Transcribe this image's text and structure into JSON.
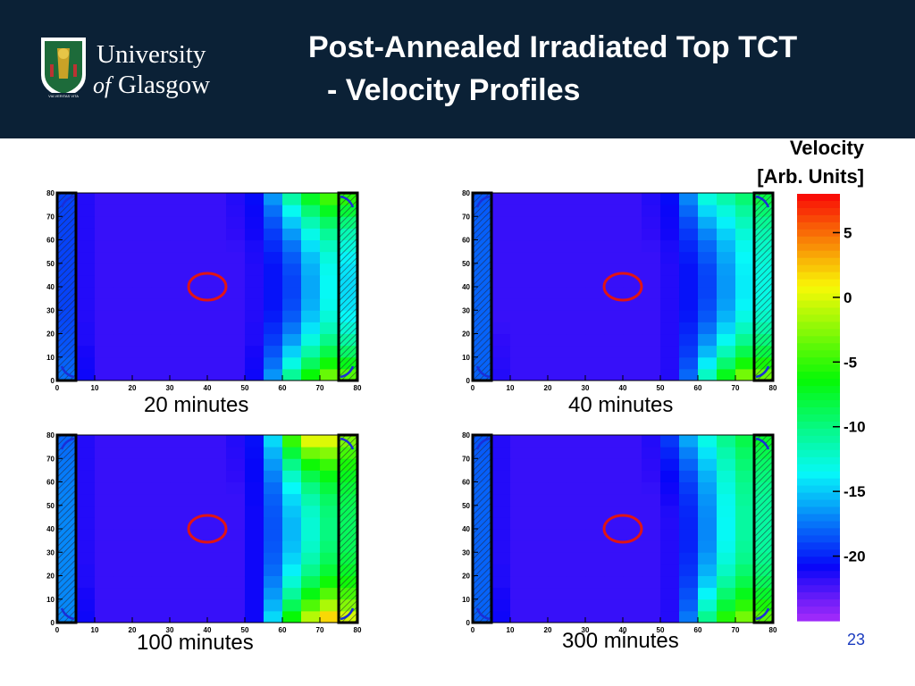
{
  "header": {
    "university_line1": "University",
    "university_line2_italic": "of",
    "university_line2": "Glasgow",
    "motto": "VIA VERITAS VITA",
    "title_line1": "Post-Annealed Irradiated Top TCT",
    "title_line2": "- Velocity Profiles"
  },
  "colorbar": {
    "title_line1": "Velocity",
    "title_line2": "[Arb. Units]",
    "range": [
      -25,
      8
    ],
    "ticks": [
      "5",
      "0",
      "-5",
      "-10",
      "-15",
      "-20"
    ],
    "tick_values": [
      5,
      0,
      -5,
      -10,
      -15,
      -20
    ]
  },
  "page_number": "23",
  "colors": {
    "header_bg": "#0b2136",
    "marker_circle": "#e01515",
    "page_number": "#1a3bbf"
  },
  "chart_data": [
    {
      "type": "heatmap",
      "caption": "20 minutes",
      "x_ticks": [
        "0",
        "10",
        "20",
        "30",
        "40",
        "50",
        "60",
        "70",
        "80"
      ],
      "y_ticks": [
        "0",
        "10",
        "20",
        "30",
        "40",
        "50",
        "60",
        "70",
        "80"
      ],
      "xlim": [
        0,
        80
      ],
      "ylim": [
        0,
        80
      ],
      "marker": {
        "x": 40,
        "y": 40
      },
      "profile_top": [
        -17,
        -21,
        -22,
        -22,
        -22,
        -22,
        -22,
        -22,
        -22,
        -22,
        -21,
        -20,
        -12,
        -8,
        -4,
        -3,
        -5
      ],
      "profile_mid": [
        -17,
        -21,
        -22,
        -22,
        -22,
        -22,
        -22,
        -22,
        -22,
        -22,
        -22,
        -21,
        -20,
        -18,
        -14,
        -13,
        -16
      ],
      "profile_bottom": [
        -15,
        -20,
        -22,
        -22,
        -22,
        -22,
        -22,
        -22,
        -22,
        -22,
        -22,
        -20,
        -12,
        -7,
        -3,
        -1,
        -4
      ]
    },
    {
      "type": "heatmap",
      "caption": "40 minutes",
      "x_ticks": [
        "0",
        "10",
        "20",
        "30",
        "40",
        "50",
        "60",
        "70",
        "80"
      ],
      "y_ticks": [
        "0",
        "10",
        "20",
        "30",
        "40",
        "50",
        "60",
        "70",
        "80"
      ],
      "xlim": [
        0,
        80
      ],
      "ylim": [
        0,
        80
      ],
      "marker": {
        "x": 40,
        "y": 40
      },
      "profile_top": [
        -15,
        -22,
        -22,
        -22,
        -22,
        -22,
        -22,
        -22,
        -22,
        -22,
        -21,
        -20,
        -13,
        -11,
        -10,
        -8,
        -7
      ],
      "profile_mid": [
        -14,
        -22,
        -22,
        -22,
        -22,
        -22,
        -22,
        -22,
        -22,
        -22,
        -22,
        -21,
        -20,
        -18,
        -15,
        -13,
        -13
      ],
      "profile_bottom": [
        -15,
        -21,
        -22,
        -22,
        -22,
        -22,
        -22,
        -22,
        -22,
        -22,
        -22,
        -21,
        -14,
        -8,
        -3,
        0,
        -4
      ]
    },
    {
      "type": "heatmap",
      "caption": "100 minutes",
      "x_ticks": [
        "0",
        "10",
        "20",
        "30",
        "40",
        "50",
        "60",
        "70",
        "80"
      ],
      "y_ticks": [
        "0",
        "10",
        "20",
        "30",
        "40",
        "50",
        "60",
        "70",
        "80"
      ],
      "xlim": [
        0,
        80
      ],
      "ylim": [
        0,
        80
      ],
      "marker": {
        "x": 40,
        "y": 40
      },
      "profile_top": [
        -15,
        -21,
        -22,
        -22,
        -22,
        -22,
        -22,
        -22,
        -22,
        -22,
        -21,
        -20,
        -8,
        1,
        3,
        0,
        -4
      ],
      "profile_mid": [
        -13,
        -21,
        -22,
        -22,
        -22,
        -22,
        -22,
        -22,
        -22,
        -22,
        -22,
        -20,
        -17,
        -14,
        -11,
        -9,
        -9
      ],
      "profile_bottom": [
        -14,
        -20,
        -22,
        -22,
        -22,
        -22,
        -22,
        -22,
        -22,
        -22,
        -22,
        -20,
        -8,
        -2,
        3,
        4,
        -2
      ]
    },
    {
      "type": "heatmap",
      "caption": "300 minutes",
      "x_ticks": [
        "0",
        "10",
        "20",
        "30",
        "40",
        "50",
        "60",
        "70",
        "80"
      ],
      "y_ticks": [
        "0",
        "10",
        "20",
        "30",
        "40",
        "50",
        "60",
        "70",
        "80"
      ],
      "xlim": [
        0,
        80
      ],
      "ylim": [
        0,
        80
      ],
      "marker": {
        "x": 40,
        "y": 40
      },
      "profile_top": [
        -16,
        -21,
        -22,
        -22,
        -22,
        -22,
        -22,
        -22,
        -22,
        -22,
        -21,
        -17,
        -14,
        -11,
        -9,
        -7,
        -7
      ],
      "profile_mid": [
        -15,
        -21,
        -22,
        -22,
        -22,
        -22,
        -22,
        -22,
        -22,
        -22,
        -22,
        -21,
        -19,
        -15,
        -12,
        -10,
        -12
      ],
      "profile_bottom": [
        -16,
        -20,
        -22,
        -22,
        -22,
        -22,
        -22,
        -22,
        -22,
        -22,
        -22,
        -21,
        -13,
        -6,
        -3,
        -1,
        -5
      ]
    }
  ]
}
